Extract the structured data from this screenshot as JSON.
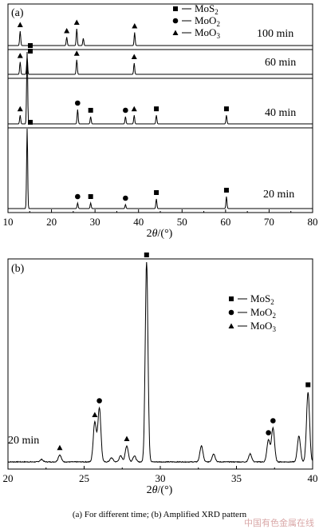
{
  "caption": "(a) For different time; (b) Amplified XRD pattern",
  "watermark": "中国有色金属在线",
  "chart_data": [
    {
      "type": "line",
      "panel_label": "(a)",
      "xlabel_var": "2θ",
      "xlabel_unit": "/(°)",
      "xlim": [
        10,
        80
      ],
      "x_ticks": [
        "10",
        "20",
        "30",
        "40",
        "50",
        "60",
        "70",
        "80"
      ],
      "legend": [
        {
          "marker": "square",
          "label": "MoS",
          "sub": "2"
        },
        {
          "marker": "circle",
          "label": "MoO",
          "sub": "2"
        },
        {
          "marker": "triangle",
          "label": "MoO",
          "sub": "3"
        }
      ],
      "series": [
        {
          "name": "100 min",
          "peaks": [
            {
              "x": 12.8,
              "h": 0.6,
              "marker": "triangle"
            },
            {
              "x": 23.5,
              "h": 0.35,
              "marker": "triangle"
            },
            {
              "x": 25.8,
              "h": 0.7,
              "marker": "triangle"
            },
            {
              "x": 27.3,
              "h": 0.3
            },
            {
              "x": 39.1,
              "h": 0.55,
              "marker": "triangle"
            }
          ]
        },
        {
          "name": "60 min",
          "peaks": [
            {
              "x": 12.8,
              "h": 0.55,
              "marker": "triangle"
            },
            {
              "x": 14.4,
              "h": 0.75,
              "marker": "square"
            },
            {
              "x": 25.8,
              "h": 0.65,
              "marker": "triangle"
            },
            {
              "x": 39.0,
              "h": 0.5,
              "marker": "triangle"
            }
          ]
        },
        {
          "name": "40 min",
          "peaks": [
            {
              "x": 12.8,
              "h": 0.12,
              "marker": "triangle"
            },
            {
              "x": 14.4,
              "h": 1.0,
              "marker": "square"
            },
            {
              "x": 26.0,
              "h": 0.2,
              "marker": "circle"
            },
            {
              "x": 29.0,
              "h": 0.1,
              "marker": "square"
            },
            {
              "x": 37.0,
              "h": 0.1,
              "marker": "circle"
            },
            {
              "x": 39.0,
              "h": 0.12,
              "marker": "triangle"
            },
            {
              "x": 44.1,
              "h": 0.12,
              "marker": "square"
            },
            {
              "x": 60.2,
              "h": 0.12,
              "marker": "square"
            }
          ]
        },
        {
          "name": "20 min",
          "peaks": [
            {
              "x": 14.4,
              "h": 1.0,
              "marker": "square"
            },
            {
              "x": 26.0,
              "h": 0.07,
              "marker": "circle"
            },
            {
              "x": 29.0,
              "h": 0.07,
              "marker": "square"
            },
            {
              "x": 37.0,
              "h": 0.05,
              "marker": "circle"
            },
            {
              "x": 44.1,
              "h": 0.12,
              "marker": "square"
            },
            {
              "x": 60.2,
              "h": 0.15,
              "marker": "square"
            }
          ]
        }
      ]
    },
    {
      "type": "line",
      "panel_label": "(b)",
      "xlabel_var": "2θ",
      "xlabel_unit": "/(°)",
      "xlim": [
        20,
        40
      ],
      "x_ticks": [
        "20",
        "25",
        "30",
        "35",
        "40"
      ],
      "series_label": "20 min",
      "legend": [
        {
          "marker": "square",
          "label": "MoS",
          "sub": "2"
        },
        {
          "marker": "circle",
          "label": "MoO",
          "sub": "2"
        },
        {
          "marker": "triangle",
          "label": "MoO",
          "sub": "3"
        }
      ],
      "peaks": [
        {
          "x": 22.2,
          "h": 0.012
        },
        {
          "x": 23.4,
          "h": 0.035,
          "marker": "triangle"
        },
        {
          "x": 25.7,
          "h": 0.2,
          "marker": "triangle"
        },
        {
          "x": 26.0,
          "h": 0.27,
          "marker": "circle"
        },
        {
          "x": 26.8,
          "h": 0.02
        },
        {
          "x": 27.4,
          "h": 0.03
        },
        {
          "x": 27.8,
          "h": 0.08,
          "marker": "triangle"
        },
        {
          "x": 28.3,
          "h": 0.03
        },
        {
          "x": 29.1,
          "h": 1.0,
          "marker": "square"
        },
        {
          "x": 32.7,
          "h": 0.08
        },
        {
          "x": 33.5,
          "h": 0.04
        },
        {
          "x": 35.9,
          "h": 0.04
        },
        {
          "x": 37.1,
          "h": 0.11,
          "marker": "circle"
        },
        {
          "x": 37.4,
          "h": 0.17,
          "marker": "circle"
        },
        {
          "x": 39.1,
          "h": 0.13
        },
        {
          "x": 39.7,
          "h": 0.35,
          "marker": "square"
        }
      ]
    }
  ]
}
